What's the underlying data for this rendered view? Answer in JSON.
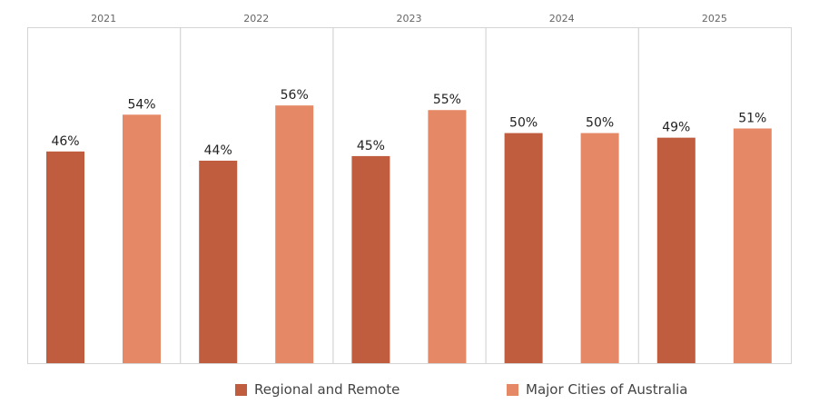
{
  "chart_data": {
    "type": "bar",
    "categories": [
      "2021",
      "2022",
      "2023",
      "2024",
      "2025"
    ],
    "series": [
      {
        "name": "Regional and Remote",
        "values": [
          46,
          44,
          45,
          50,
          49
        ],
        "labels": [
          "46%",
          "44%",
          "45%",
          "50%",
          "49%"
        ],
        "color": "#c05d3e"
      },
      {
        "name": "Major Cities of Australia",
        "values": [
          54,
          56,
          55,
          50,
          51
        ],
        "labels": [
          "54%",
          "56%",
          "55%",
          "50%",
          "51%"
        ],
        "color": "#e58866"
      }
    ],
    "ylim": [
      0,
      73
    ],
    "legend_position": "bottom",
    "grid": false
  }
}
